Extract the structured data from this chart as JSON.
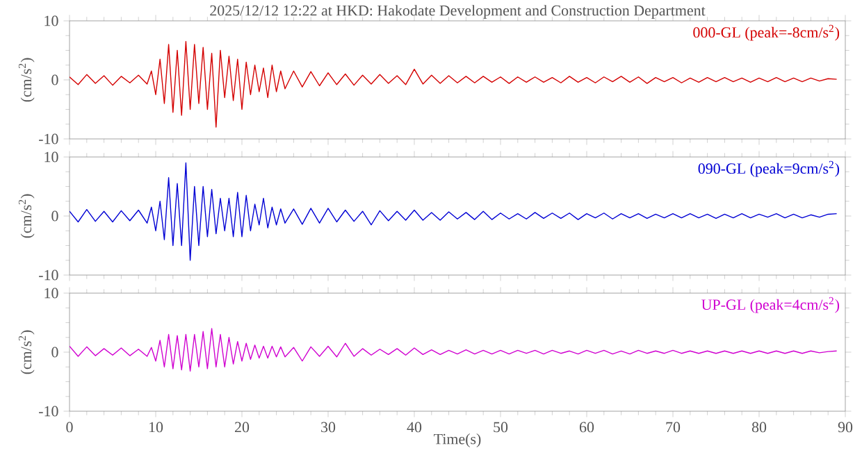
{
  "chart_data": [
    {
      "type": "line",
      "title": "2025/12/12 12:22 at HKD: Hakodate Development and Construction Department",
      "ylabel": "(cm/s$^{2}$)",
      "tick_labels": "y",
      "legend": false,
      "x": [
        0,
        1,
        2,
        3,
        4,
        5,
        6,
        7,
        8,
        9,
        9.5,
        10,
        10.5,
        11,
        11.5,
        12,
        12.5,
        13,
        13.5,
        14,
        14.5,
        15,
        15.5,
        16,
        16.5,
        17,
        17.5,
        18,
        18.5,
        19,
        19.5,
        20,
        20.5,
        21,
        21.5,
        22,
        22.5,
        23,
        23.5,
        24,
        24.5,
        25,
        26,
        27,
        28,
        29,
        30,
        31,
        32,
        33,
        34,
        35,
        36,
        37,
        38,
        39,
        40,
        41,
        42,
        43,
        44,
        45,
        46,
        47,
        48,
        49,
        50,
        51,
        52,
        53,
        54,
        55,
        56,
        57,
        58,
        59,
        60,
        61,
        62,
        63,
        64,
        65,
        66,
        67,
        68,
        69,
        70,
        71,
        72,
        73,
        74,
        75,
        76,
        77,
        78,
        79,
        80,
        81,
        82,
        83,
        84,
        85,
        86,
        87,
        88,
        89
      ],
      "xlim": [
        0,
        90
      ],
      "xticks": [
        0,
        10,
        20,
        30,
        40,
        50,
        60,
        70,
        80,
        90
      ],
      "ylim": [
        -10,
        10
      ],
      "yticks": [
        -10,
        0,
        10
      ],
      "series": [
        {
          "name": "000-GL (peak=-8cm/s$^{2}$)",
          "color": "#d40000",
          "values": [
            0.5,
            -0.8,
            0.9,
            -0.6,
            0.7,
            -0.9,
            0.6,
            -0.5,
            0.8,
            -0.7,
            1.5,
            -2.5,
            3.5,
            -4,
            6,
            -5.5,
            5,
            -6,
            6.5,
            -5,
            6,
            -4,
            5.5,
            -5,
            4.5,
            -8,
            5,
            -3,
            4,
            -3.5,
            3.5,
            -5,
            3,
            -2.5,
            2.5,
            -2,
            2,
            -3,
            2.5,
            -2,
            1.5,
            -1.5,
            1.5,
            -1.2,
            1.4,
            -1,
            1.2,
            -0.8,
            1,
            -0.9,
            0.8,
            -0.7,
            0.9,
            -0.6,
            0.7,
            -0.8,
            1.8,
            -0.7,
            0.8,
            -0.6,
            0.7,
            -0.5,
            0.6,
            -0.5,
            0.6,
            -0.4,
            0.5,
            -0.6,
            0.5,
            -0.4,
            0.5,
            -0.4,
            0.4,
            -0.5,
            0.6,
            -0.4,
            0.4,
            -0.5,
            0.5,
            -0.3,
            0.6,
            -0.4,
            0.5,
            -0.6,
            0.4,
            -0.3,
            0.4,
            -0.5,
            0.3,
            -0.4,
            0.4,
            -0.3,
            0.4,
            -0.3,
            0.3,
            -0.4,
            0.3,
            -0.3,
            0.4,
            -0.3,
            0.3,
            -0.3,
            0.3,
            -0.2,
            0.2,
            0.1
          ]
        }
      ]
    },
    {
      "type": "line",
      "ylabel": "(cm/s$^{2}$)",
      "tick_labels": "y",
      "legend": false,
      "x": [
        0,
        1,
        2,
        3,
        4,
        5,
        6,
        7,
        8,
        9,
        9.5,
        10,
        10.5,
        11,
        11.5,
        12,
        12.5,
        13,
        13.5,
        14,
        14.5,
        15,
        15.5,
        16,
        16.5,
        17,
        17.5,
        18,
        18.5,
        19,
        19.5,
        20,
        20.5,
        21,
        21.5,
        22,
        22.5,
        23,
        23.5,
        24,
        24.5,
        25,
        26,
        27,
        28,
        29,
        30,
        31,
        32,
        33,
        34,
        35,
        36,
        37,
        38,
        39,
        40,
        41,
        42,
        43,
        44,
        45,
        46,
        47,
        48,
        49,
        50,
        51,
        52,
        53,
        54,
        55,
        56,
        57,
        58,
        59,
        60,
        61,
        62,
        63,
        64,
        65,
        66,
        67,
        68,
        69,
        70,
        71,
        72,
        73,
        74,
        75,
        76,
        77,
        78,
        79,
        80,
        81,
        82,
        83,
        84,
        85,
        86,
        87,
        88,
        89
      ],
      "xlim": [
        0,
        90
      ],
      "xticks": [
        0,
        10,
        20,
        30,
        40,
        50,
        60,
        70,
        80,
        90
      ],
      "ylim": [
        -10,
        10
      ],
      "yticks": [
        -10,
        0,
        10
      ],
      "series": [
        {
          "name": "090-GL (peak=9cm/s$^{2}$)",
          "color": "#0000d4",
          "values": [
            0.8,
            -1,
            1.1,
            -0.9,
            0.8,
            -1,
            0.9,
            -0.8,
            1,
            -1.2,
            1.5,
            -2.5,
            2.5,
            -4,
            6.5,
            -5,
            5.5,
            -5,
            9,
            -7.5,
            5,
            -5,
            5,
            -3.5,
            4.5,
            -3,
            3,
            -2.5,
            3,
            -3.5,
            4,
            -3.5,
            3.5,
            -2.5,
            2,
            -1.5,
            3,
            -2,
            1.5,
            -1.5,
            1.2,
            -1.2,
            1.2,
            -1.4,
            1.3,
            -1.2,
            1.3,
            -1,
            1,
            -0.9,
            0.8,
            -1.5,
            0.9,
            -0.8,
            0.8,
            -0.7,
            1,
            -0.7,
            0.6,
            -0.7,
            0.7,
            -0.5,
            0.6,
            -0.6,
            0.8,
            -0.6,
            0.5,
            -0.5,
            0.4,
            -0.5,
            0.6,
            -0.4,
            0.5,
            -0.4,
            0.5,
            -0.6,
            0.4,
            -0.3,
            0.5,
            -0.5,
            0.4,
            -0.3,
            0.4,
            -0.4,
            0.3,
            -0.3,
            0.4,
            -0.3,
            0.4,
            -0.3,
            0.3,
            -0.4,
            0.3,
            -0.3,
            0.4,
            -0.3,
            0.3,
            -0.2,
            0.4,
            -0.3,
            0.3,
            -0.3,
            0.2,
            -0.2,
            0.3,
            0.4
          ]
        }
      ]
    },
    {
      "type": "line",
      "ylabel": "(cm/s$^{2}$)",
      "xlabel": "Time(s)",
      "legend": false,
      "x": [
        0,
        1,
        2,
        3,
        4,
        5,
        6,
        7,
        8,
        9,
        9.5,
        10,
        10.5,
        11,
        11.5,
        12,
        12.5,
        13,
        13.5,
        14,
        14.5,
        15,
        15.5,
        16,
        16.5,
        17,
        17.5,
        18,
        18.5,
        19,
        19.5,
        20,
        20.5,
        21,
        21.5,
        22,
        22.5,
        23,
        23.5,
        24,
        24.5,
        25,
        26,
        27,
        28,
        29,
        30,
        31,
        32,
        33,
        34,
        35,
        36,
        37,
        38,
        39,
        40,
        41,
        42,
        43,
        44,
        45,
        46,
        47,
        48,
        49,
        50,
        51,
        52,
        53,
        54,
        55,
        56,
        57,
        58,
        59,
        60,
        61,
        62,
        63,
        64,
        65,
        66,
        67,
        68,
        69,
        70,
        71,
        72,
        73,
        74,
        75,
        76,
        77,
        78,
        79,
        80,
        81,
        82,
        83,
        84,
        85,
        86,
        87,
        88,
        89
      ],
      "xlim": [
        0,
        90
      ],
      "xticks": [
        0,
        10,
        20,
        30,
        40,
        50,
        60,
        70,
        80,
        90
      ],
      "ylim": [
        -10,
        10
      ],
      "yticks": [
        -10,
        0,
        10
      ],
      "series": [
        {
          "name": "UP-GL (peak=4cm/s$^{2}$)",
          "color": "#d000d0",
          "values": [
            1,
            -0.7,
            0.9,
            -0.6,
            0.6,
            -0.5,
            0.7,
            -0.6,
            0.5,
            -0.7,
            0.8,
            -1.5,
            2,
            -2.5,
            3,
            -2.8,
            2.8,
            -3,
            3,
            -3.2,
            3,
            -2.5,
            3.5,
            -2.8,
            4,
            -2.5,
            3,
            -2.5,
            2.5,
            -2,
            1.8,
            -1.5,
            1.5,
            -1.2,
            1.2,
            -1,
            1,
            -1,
            1,
            -0.8,
            0.9,
            -0.8,
            0.8,
            -1.5,
            0.9,
            -0.7,
            1,
            -0.8,
            1.5,
            -0.7,
            0.6,
            -0.5,
            0.5,
            -0.4,
            0.6,
            -0.5,
            0.7,
            -0.4,
            0.4,
            -0.4,
            0.3,
            -0.3,
            0.4,
            -0.3,
            0.3,
            -0.3,
            0.3,
            -0.3,
            0.3,
            -0.2,
            0.3,
            -0.3,
            0.3,
            -0.2,
            0.2,
            -0.3,
            0.3,
            -0.2,
            0.3,
            -0.3,
            0.2,
            -0.3,
            0.3,
            -0.2,
            0.2,
            -0.2,
            0.3,
            -0.2,
            0.2,
            -0.2,
            0.2,
            -0.2,
            0.2,
            -0.2,
            0.2,
            -0.2,
            0.2,
            -0.2,
            0.2,
            -0.2,
            0.2,
            -0.2,
            0.2,
            -0.1,
            0.1,
            0.2
          ]
        }
      ]
    }
  ]
}
